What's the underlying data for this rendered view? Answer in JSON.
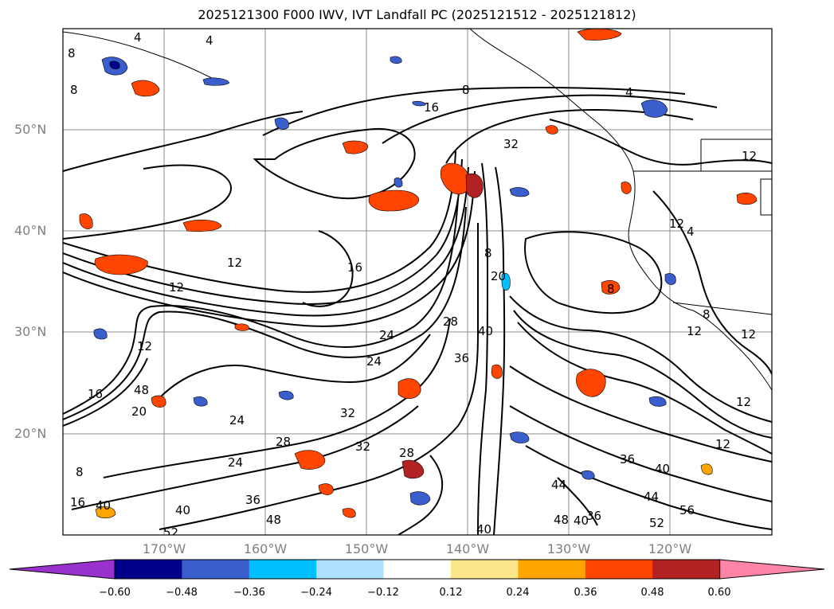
{
  "title": "2025121300 F000 IWV, IVT Landfall PC (2025121512 - 2025121812)",
  "map": {
    "lon_range": [
      "180°",
      "110°W"
    ],
    "lat_range": [
      "10°N",
      "60°N"
    ],
    "lat_labels": [
      "50°N",
      "40°N",
      "30°N",
      "20°N"
    ],
    "lon_labels": [
      "170°W",
      "160°W",
      "150°W",
      "140°W",
      "130°W",
      "120°W"
    ],
    "grid": true,
    "contour_labels": [
      "4",
      "4",
      "8",
      "8",
      "16",
      "12",
      "12",
      "16",
      "8",
      "4",
      "32",
      "8",
      "20",
      "28",
      "36",
      "40",
      "24",
      "24",
      "32",
      "28",
      "32",
      "24",
      "28",
      "36",
      "40",
      "44",
      "44",
      "52",
      "56",
      "48",
      "36",
      "40",
      "52",
      "48",
      "40",
      "12",
      "8",
      "12",
      "12",
      "16",
      "20",
      "24",
      "12",
      "12",
      "12",
      "8",
      "4",
      "16",
      "40",
      "8",
      "12",
      "48",
      "40",
      "36"
    ]
  },
  "colorbar": {
    "colors": [
      "#9932cc",
      "#00008b",
      "#3a5fcd",
      "#00bfff",
      "#b0e2ff",
      "#ffffff",
      "#fde68a",
      "#ffa500",
      "#ff4500",
      "#b22222",
      "#ff85a8"
    ],
    "tick_labels": [
      "−0.60",
      "−0.48",
      "−0.36",
      "−0.24",
      "−0.12",
      "0.12",
      "0.24",
      "0.36",
      "0.48",
      "0.60"
    ]
  }
}
